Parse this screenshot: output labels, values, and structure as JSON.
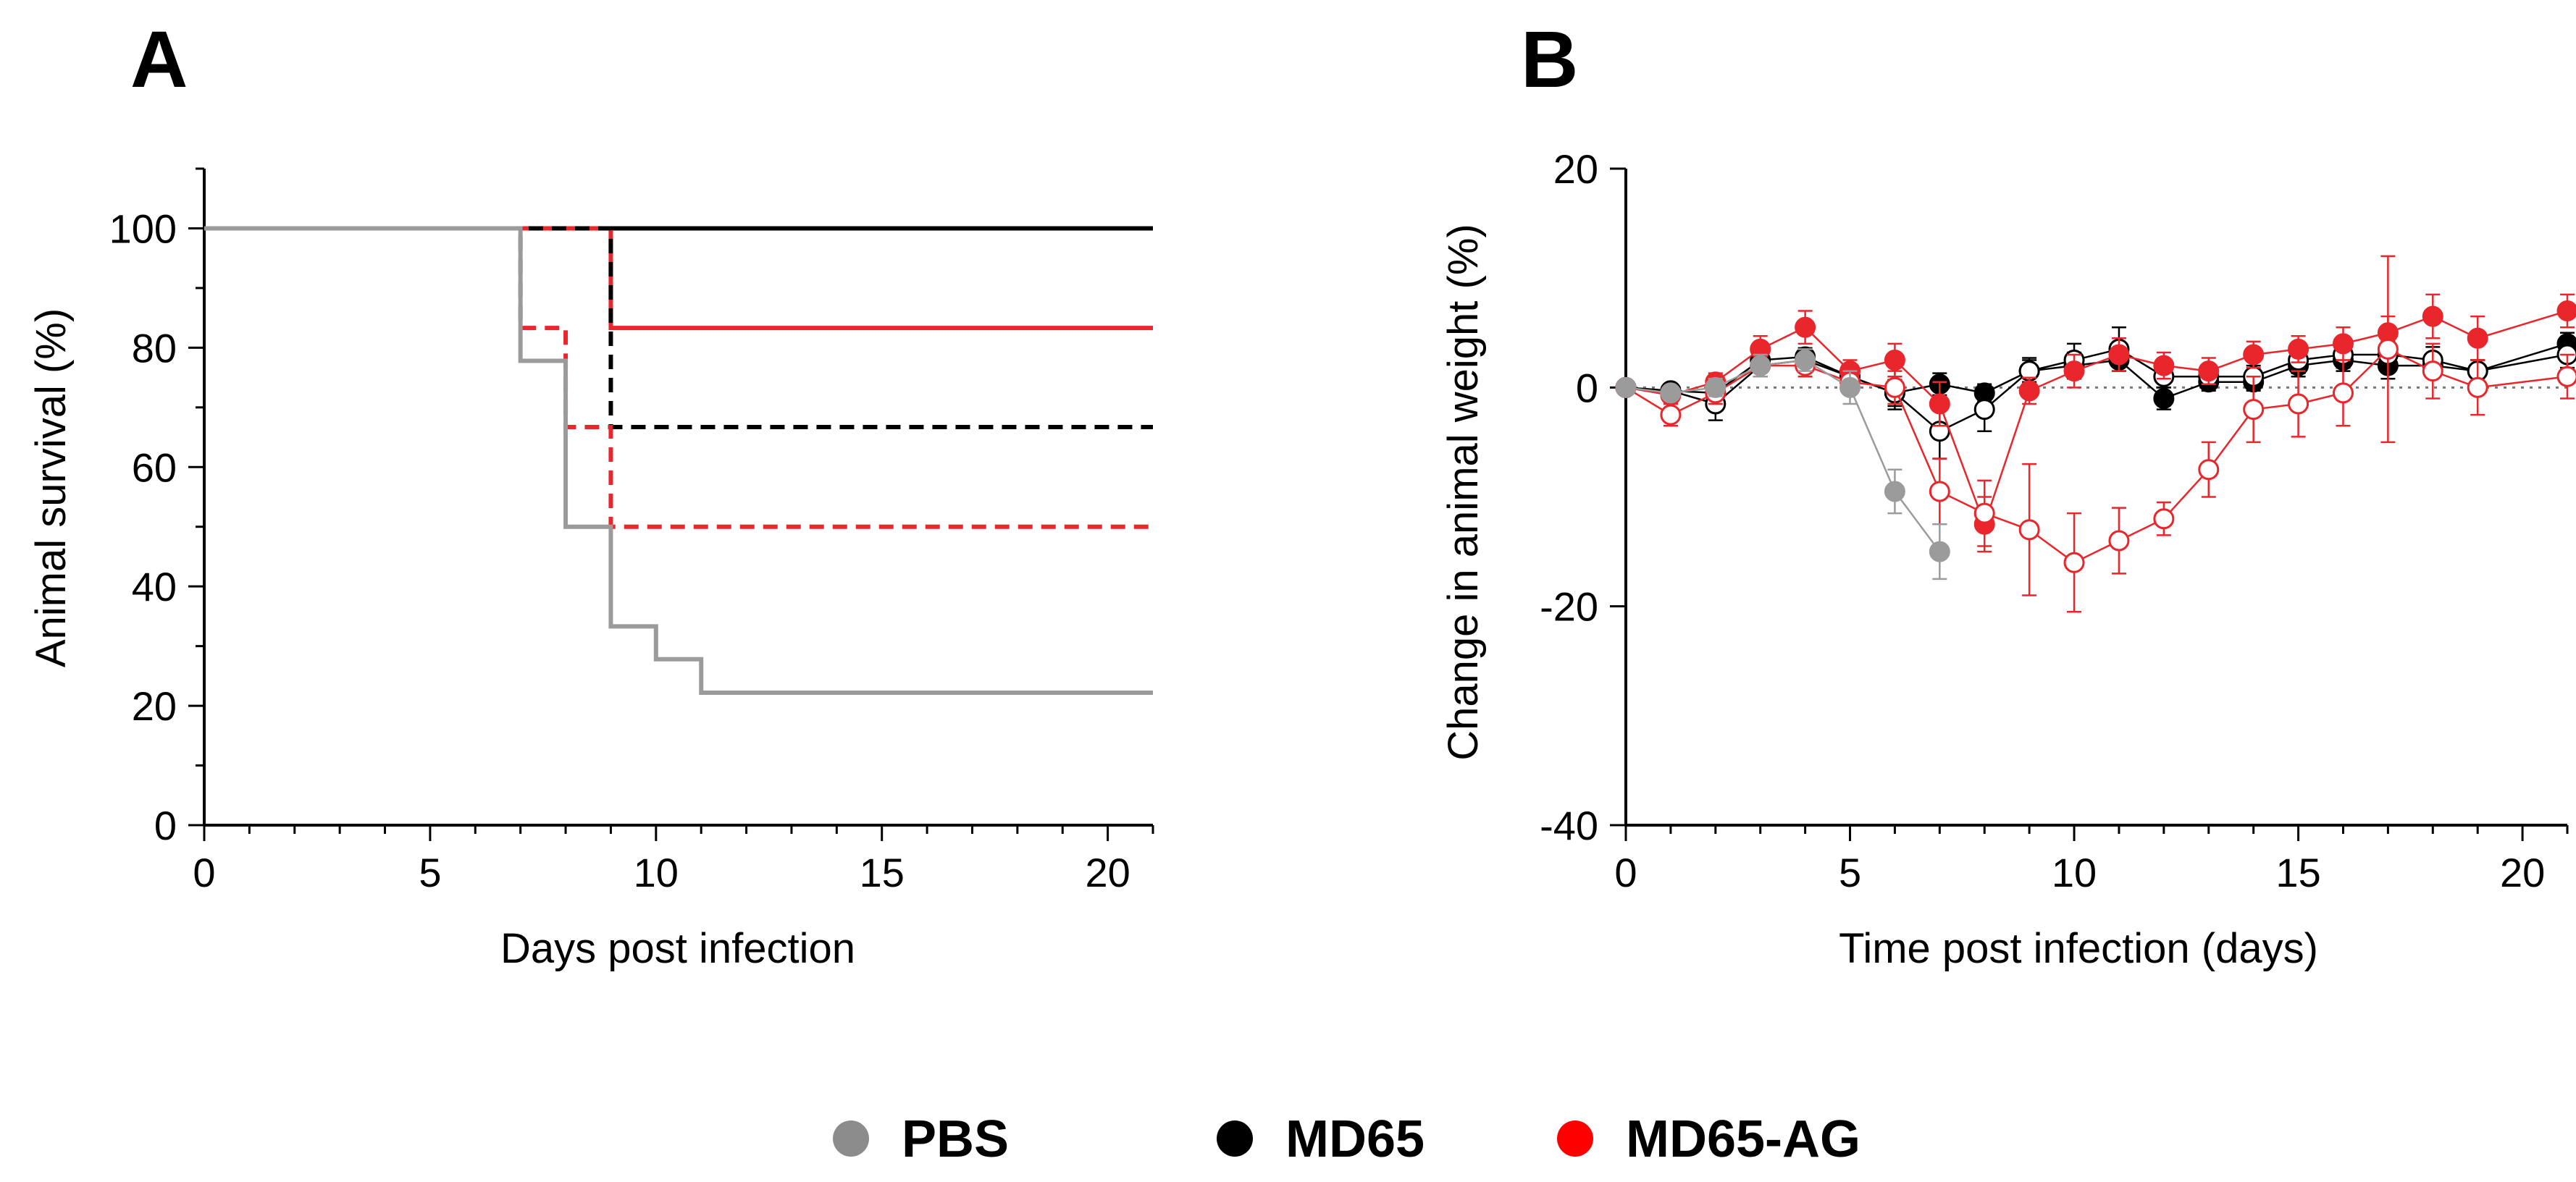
{
  "chart_data": [
    {
      "panel": "A",
      "type": "line",
      "step": true,
      "xlabel": "Days post infection",
      "ylabel": "Animal survival (%)",
      "xlim": [
        0,
        21
      ],
      "ylim": [
        0,
        110
      ],
      "xticks": [
        0,
        5,
        10,
        15,
        20
      ],
      "yticks": [
        0,
        20,
        40,
        60,
        80,
        100
      ],
      "series": [
        {
          "name": "MD65",
          "color": "#000000",
          "dashed": false,
          "x": [
            0,
            21
          ],
          "y": [
            100,
            100
          ]
        },
        {
          "name": "MD65-AG",
          "color": "#e8262b",
          "dashed": false,
          "x": [
            0,
            9,
            21
          ],
          "y": [
            100,
            83.3,
            83.3
          ]
        },
        {
          "name": "MD65 (dashed)",
          "color": "#000000",
          "dashed": true,
          "x": [
            0,
            9,
            21
          ],
          "y": [
            100,
            66.7,
            66.7
          ]
        },
        {
          "name": "MD65-AG (dashed)",
          "color": "#e8262b",
          "dashed": true,
          "x": [
            0,
            7,
            8,
            9,
            21
          ],
          "y": [
            100,
            83.3,
            66.7,
            50,
            50
          ]
        },
        {
          "name": "PBS",
          "color": "#9b9b9b",
          "dashed": false,
          "x": [
            0,
            7,
            8,
            9,
            10,
            11,
            21
          ],
          "y": [
            100,
            77.8,
            50,
            33.3,
            27.8,
            22.2,
            22.2
          ]
        }
      ]
    },
    {
      "panel": "B",
      "type": "line",
      "xlabel": "Time post infection (days)",
      "ylabel": "Change in animal weight (%)",
      "xlim": [
        0,
        21
      ],
      "ylim": [
        -40,
        20
      ],
      "xticks": [
        0,
        5,
        10,
        15,
        20
      ],
      "yticks": [
        -40,
        -20,
        0,
        20
      ],
      "reference_line": 0,
      "series": [
        {
          "name": "MD65",
          "color": "#000000",
          "filled": true,
          "x": [
            0,
            1,
            2,
            3,
            4,
            5,
            6,
            7,
            8,
            9,
            10,
            11,
            12,
            13,
            14,
            15,
            16,
            17,
            18,
            19,
            21
          ],
          "y": [
            0,
            -0.3,
            -0.5,
            2.5,
            2.8,
            1.0,
            -0.5,
            0.3,
            -0.5,
            1.5,
            2.0,
            2.5,
            -1.0,
            0.5,
            0.5,
            2.0,
            2.5,
            2.0,
            2.0,
            1.5,
            4.0
          ],
          "err": [
            0.3,
            0.5,
            1.2,
            1.0,
            0.8,
            0.8,
            1.2,
            1.0,
            0.8,
            1.0,
            1.2,
            1.0,
            1.0,
            0.8,
            0.8,
            1.0,
            1.0,
            1.2,
            1.0,
            1.0,
            1.0
          ]
        },
        {
          "name": "MD65 (open)",
          "color": "#000000",
          "filled": false,
          "x": [
            0,
            1,
            2,
            3,
            4,
            5,
            6,
            7,
            8,
            9,
            10,
            11,
            12,
            13,
            14,
            15,
            16,
            17,
            18,
            19,
            21
          ],
          "y": [
            0,
            -0.3,
            -1.5,
            2.0,
            2.5,
            1.0,
            -0.5,
            -4.0,
            -2.0,
            1.5,
            2.5,
            3.5,
            1.0,
            1.0,
            1.0,
            2.5,
            3.0,
            3.0,
            2.5,
            1.5,
            3.0
          ],
          "err": [
            0.3,
            0.5,
            1.5,
            1.0,
            0.8,
            1.0,
            1.5,
            2.5,
            2.0,
            1.2,
            1.5,
            2.0,
            1.0,
            1.0,
            1.0,
            1.2,
            1.2,
            1.2,
            1.2,
            1.0,
            1.2
          ]
        },
        {
          "name": "MD65-AG",
          "color": "#e8262b",
          "filled": true,
          "x": [
            0,
            1,
            2,
            3,
            4,
            5,
            6,
            7,
            8,
            9,
            10,
            11,
            12,
            13,
            14,
            15,
            16,
            17,
            18,
            19,
            21
          ],
          "y": [
            0,
            -0.7,
            0.5,
            3.5,
            5.5,
            1.5,
            2.5,
            -1.5,
            -12.5,
            -0.3,
            1.5,
            3.0,
            2.0,
            1.5,
            3.0,
            3.5,
            4.0,
            5.0,
            6.5,
            4.5,
            7.0
          ],
          "err": [
            0.3,
            0.8,
            0.8,
            1.2,
            1.5,
            1.0,
            1.5,
            2.0,
            2.5,
            1.2,
            1.5,
            1.5,
            1.2,
            1.2,
            1.2,
            1.2,
            1.5,
            1.5,
            2.0,
            2.0,
            1.5
          ]
        },
        {
          "name": "MD65-AG (open)",
          "color": "#e8262b",
          "filled": false,
          "x": [
            0,
            1,
            2,
            3,
            4,
            5,
            6,
            7,
            8,
            9,
            10,
            11,
            12,
            13,
            14,
            15,
            16,
            17,
            18,
            19,
            21
          ],
          "y": [
            0,
            -2.5,
            -0.5,
            2.0,
            2.0,
            0.5,
            0.0,
            -9.5,
            -11.5,
            -13.0,
            -16.0,
            -14.0,
            -12.0,
            -7.5,
            -2.0,
            -1.5,
            -0.5,
            3.5,
            1.5,
            0.0,
            1.0
          ],
          "err": [
            0.3,
            1.0,
            1.0,
            1.0,
            1.0,
            1.0,
            1.5,
            3.0,
            3.0,
            6.0,
            4.5,
            3.0,
            1.5,
            2.5,
            3.0,
            3.0,
            3.0,
            8.5,
            2.5,
            2.5,
            2.0
          ]
        },
        {
          "name": "PBS",
          "color": "#9b9b9b",
          "filled": true,
          "x": [
            0,
            1,
            2,
            3,
            4,
            5,
            6,
            7
          ],
          "y": [
            0,
            -0.5,
            0.0,
            2.0,
            2.5,
            0.0,
            -9.5,
            -15.0
          ],
          "err": [
            0.3,
            0.5,
            0.8,
            1.0,
            1.0,
            1.5,
            2.0,
            2.5
          ]
        }
      ]
    }
  ],
  "panels": {
    "a_label": "A",
    "b_label": "B"
  },
  "legend": {
    "position": "bottom-center",
    "items": [
      {
        "label": "PBS",
        "color": "#8c8c8c"
      },
      {
        "label": "MD65",
        "color": "#000000"
      },
      {
        "label": "MD65-AG",
        "color": "#ff0000"
      }
    ]
  }
}
